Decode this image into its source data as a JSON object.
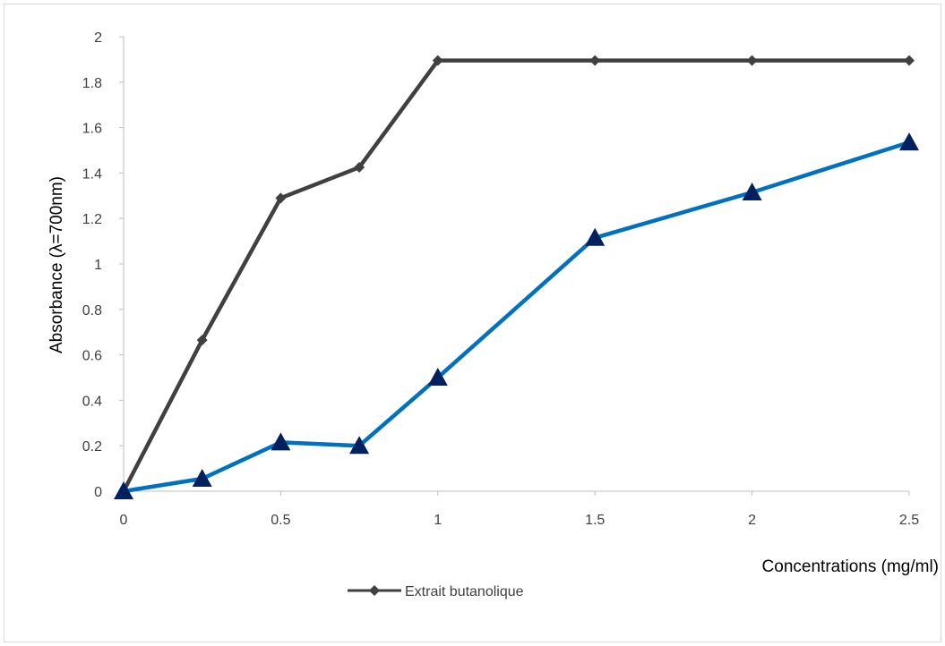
{
  "chart_data": {
    "type": "line",
    "xlabel": "Concentrations (mg/ml)",
    "ylabel": "Absorbance (λ=700nm)",
    "xlim": [
      0,
      2.5
    ],
    "ylim": [
      0,
      2
    ],
    "x_ticks": [
      "0",
      "0.5",
      "1",
      "1.5",
      "2",
      "2.5"
    ],
    "y_ticks": [
      "0",
      "0.2",
      "0.4",
      "0.6",
      "0.8",
      "1",
      "1.2",
      "1.4",
      "1.6",
      "1.8",
      "2"
    ],
    "grid": false,
    "legend_position": "bottom",
    "x": [
      0,
      0.25,
      0.5,
      0.75,
      1,
      1.5,
      2,
      2.5
    ],
    "series": [
      {
        "name": "Extrait butanolique",
        "values": [
          0,
          0.665,
          1.29,
          1.425,
          1.895,
          1.895,
          1.895,
          1.895
        ],
        "color": "#404040",
        "marker": "diamond"
      },
      {
        "values": [
          0,
          0.055,
          0.215,
          0.2,
          0.5,
          1.115,
          1.315,
          1.535
        ],
        "color": "#0070C0",
        "marker": "triangle",
        "marker_color": "#002060"
      }
    ]
  }
}
